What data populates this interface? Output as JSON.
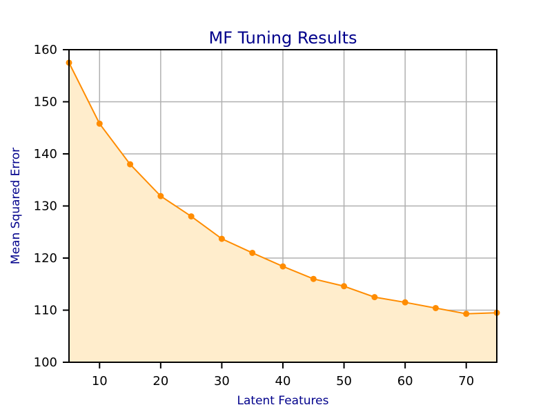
{
  "chart_data": {
    "type": "area",
    "title": "MF Tuning Results",
    "xlabel": "Latent Features",
    "ylabel": "Mean Squared Error",
    "xlim": [
      5,
      75
    ],
    "ylim": [
      100,
      160
    ],
    "xticks": [
      10,
      20,
      30,
      40,
      50,
      60,
      70
    ],
    "yticks": [
      100,
      110,
      120,
      130,
      140,
      150,
      160
    ],
    "grid": true,
    "x": [
      5,
      10,
      15,
      20,
      25,
      30,
      35,
      40,
      45,
      50,
      55,
      60,
      65,
      70,
      75
    ],
    "series": [
      {
        "values": [
          157.5,
          145.8,
          138.0,
          131.9,
          128.0,
          123.7,
          121.0,
          118.4,
          116.0,
          114.6,
          112.5,
          111.5,
          110.4,
          109.3,
          109.5
        ]
      }
    ],
    "colors": {
      "line": "#ff8c00",
      "fill": "#ffedcc",
      "title": "#00008b",
      "axis_label": "#00008b",
      "grid": "#b0b0b0",
      "spine": "#000000"
    }
  }
}
